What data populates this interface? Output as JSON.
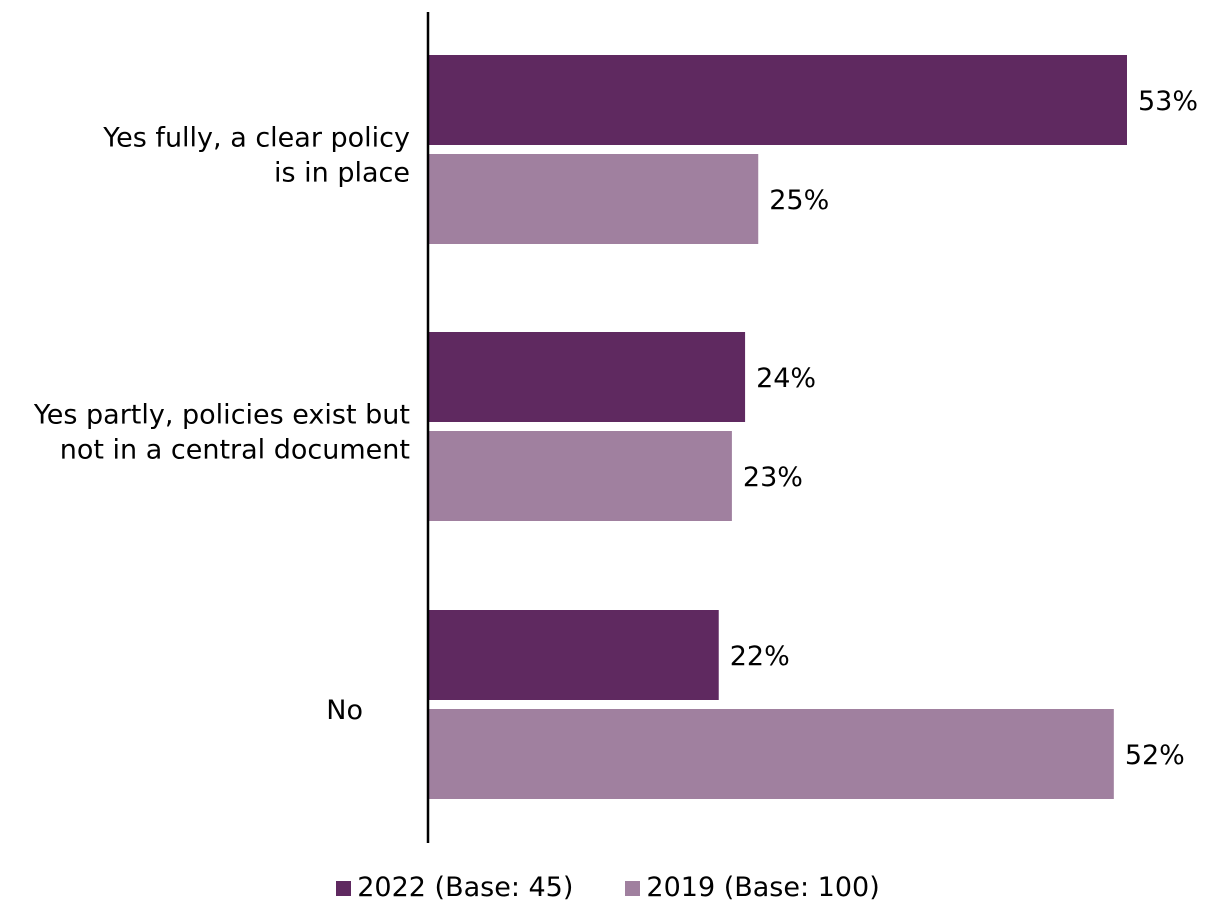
{
  "chart_data": {
    "type": "bar",
    "orientation": "horizontal",
    "categories": [
      [
        "Yes fully, a clear policy",
        "is in place"
      ],
      [
        "Yes partly, policies exist but",
        "not in a central document"
      ],
      [
        "No"
      ]
    ],
    "series": [
      {
        "name": "2022 (Base: 45)",
        "color": "#5f2960",
        "values": [
          53,
          24,
          22
        ],
        "labels": [
          "53%",
          "24%",
          "22%"
        ]
      },
      {
        "name": "2019 (Base: 100)",
        "color": "#a0809f",
        "values": [
          25,
          23,
          52
        ],
        "labels": [
          "25%",
          "23%",
          "52%"
        ]
      }
    ],
    "xlim": [
      0,
      53
    ],
    "value_unit": "%",
    "grid": false,
    "legend_position": "bottom",
    "title": "",
    "xlabel": "",
    "ylabel": ""
  }
}
